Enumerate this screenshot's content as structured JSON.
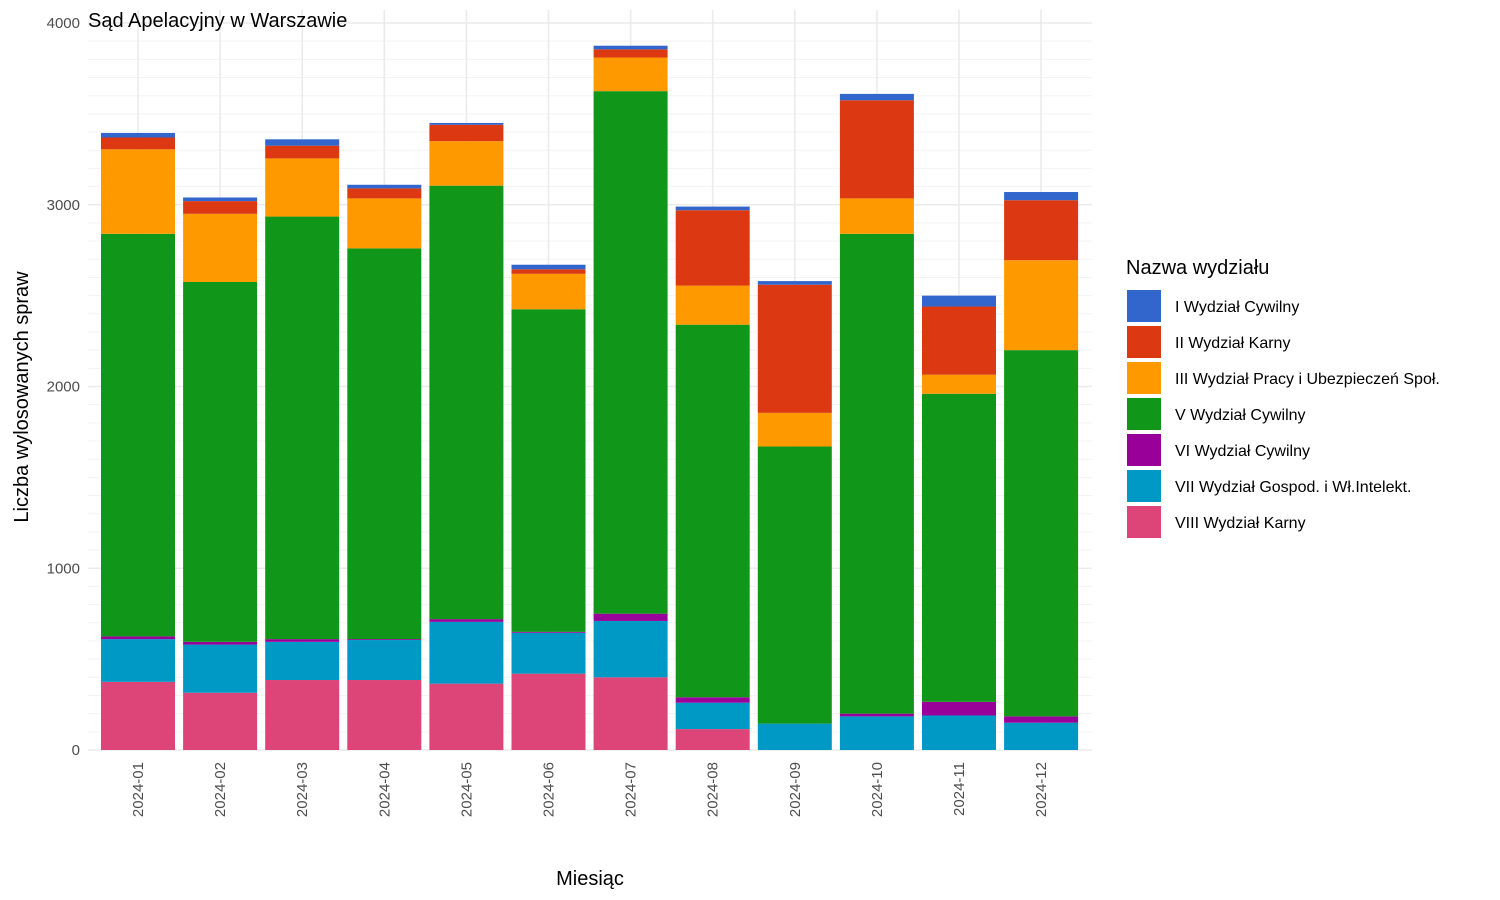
{
  "chart_data": {
    "type": "bar",
    "stacked": true,
    "title": "Sąd Apelacyjny w Warszawie",
    "xlabel": "Miesiąc",
    "ylabel": "Liczba wylosowanych spraw",
    "ylim": [
      0,
      4000
    ],
    "yticks": [
      "0",
      "1000",
      "2000",
      "3000",
      "4000"
    ],
    "grid": true,
    "legend_title": "Nazwa wydziału",
    "legend_position": "right",
    "categories": [
      "2024-01",
      "2024-02",
      "2024-03",
      "2024-04",
      "2024-05",
      "2024-06",
      "2024-07",
      "2024-08",
      "2024-09",
      "2024-10",
      "2024-11",
      "2024-12"
    ],
    "series": [
      {
        "name": "VIII Wydział Karny",
        "color": "#dd4477",
        "values": [
          375,
          315,
          385,
          385,
          365,
          420,
          400,
          115,
          0,
          0,
          0,
          0
        ]
      },
      {
        "name": "VII Wydział Gospod. i Wł.Intelekt.",
        "color": "#0099c6",
        "values": [
          235,
          265,
          210,
          220,
          340,
          225,
          310,
          145,
          145,
          185,
          190,
          150
        ]
      },
      {
        "name": "VI Wydział Cywilny",
        "color": "#990099",
        "values": [
          15,
          15,
          15,
          5,
          15,
          5,
          40,
          30,
          0,
          15,
          75,
          35
        ]
      },
      {
        "name": "V Wydział Cywilny",
        "color": "#109618",
        "values": [
          2215,
          1980,
          2325,
          2150,
          2385,
          1775,
          2875,
          2050,
          1525,
          2640,
          1695,
          2015
        ]
      },
      {
        "name": "III Wydział Pracy i Ubezpieczeń Społ.",
        "color": "#ff9900",
        "values": [
          465,
          375,
          320,
          275,
          245,
          195,
          185,
          215,
          185,
          195,
          105,
          495
        ]
      },
      {
        "name": "II Wydział Karny",
        "color": "#dc3912",
        "values": [
          65,
          70,
          70,
          55,
          90,
          25,
          45,
          415,
          705,
          540,
          375,
          330
        ]
      },
      {
        "name": "I Wydział Cywilny",
        "color": "#3366cc",
        "values": [
          25,
          20,
          35,
          20,
          10,
          25,
          20,
          20,
          20,
          35,
          60,
          45
        ]
      }
    ],
    "legend_order": [
      "I Wydział Cywilny",
      "II Wydział Karny",
      "III Wydział Pracy i Ubezpieczeń Społ.",
      "V Wydział Cywilny",
      "VI Wydział Cywilny",
      "VII Wydział Gospod. i Wł.Intelekt.",
      "VIII Wydział Karny"
    ]
  }
}
